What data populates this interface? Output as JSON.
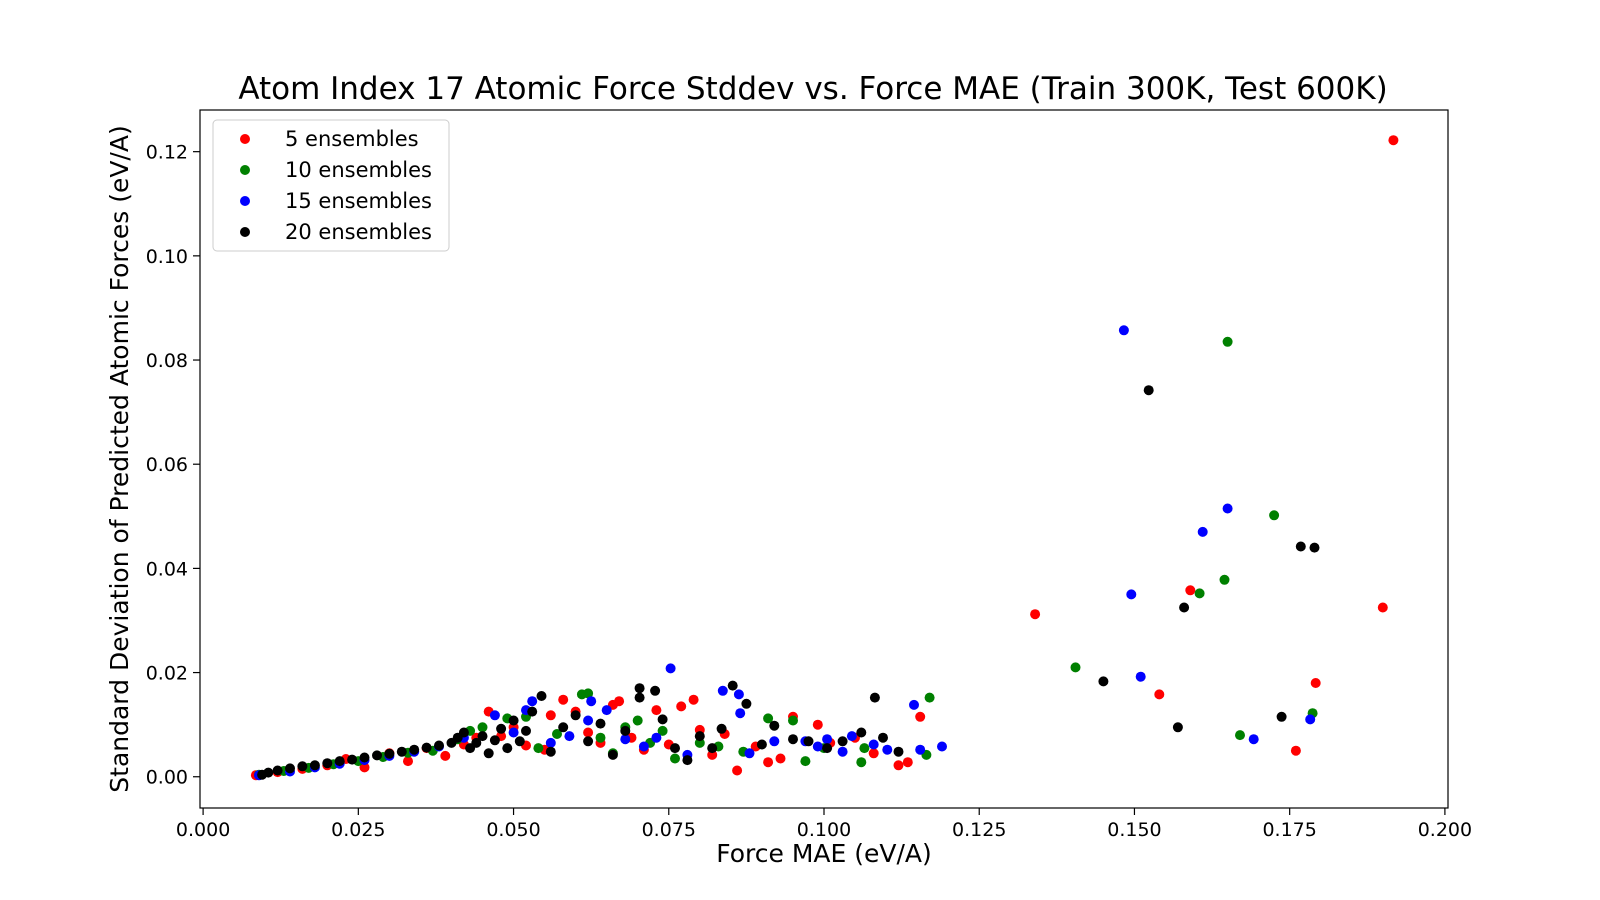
{
  "chart_data": {
    "type": "scatter",
    "title": "Atom Index 17 Atomic Force Stddev vs. Force MAE (Train 300K, Test 600K)",
    "xlabel": "Force MAE (eV/A)",
    "ylabel": "Standard Deviation of Predicted Atomic Forces (eV/A)",
    "xlim": [
      -0.0005,
      0.2005
    ],
    "ylim": [
      -0.006,
      0.128
    ],
    "xticks": [
      "0.000",
      "0.025",
      "0.050",
      "0.075",
      "0.100",
      "0.125",
      "0.150",
      "0.175",
      "0.200"
    ],
    "yticks": [
      "0.00",
      "0.02",
      "0.04",
      "0.06",
      "0.08",
      "0.10",
      "0.12"
    ],
    "grid": false,
    "legend_position": "top-left",
    "series": [
      {
        "name": "5 ensembles",
        "color": "#ff0000",
        "points": [
          [
            0.0085,
            0.0003
          ],
          [
            0.012,
            0.0009
          ],
          [
            0.016,
            0.0015
          ],
          [
            0.02,
            0.0022
          ],
          [
            0.023,
            0.0034
          ],
          [
            0.026,
            0.0018
          ],
          [
            0.03,
            0.0045
          ],
          [
            0.033,
            0.003
          ],
          [
            0.036,
            0.0055
          ],
          [
            0.039,
            0.004
          ],
          [
            0.042,
            0.0062
          ],
          [
            0.044,
            0.0075
          ],
          [
            0.046,
            0.0125
          ],
          [
            0.048,
            0.0078
          ],
          [
            0.05,
            0.0095
          ],
          [
            0.052,
            0.006
          ],
          [
            0.055,
            0.0052
          ],
          [
            0.056,
            0.0118
          ],
          [
            0.058,
            0.0148
          ],
          [
            0.06,
            0.0125
          ],
          [
            0.062,
            0.0085
          ],
          [
            0.064,
            0.0065
          ],
          [
            0.066,
            0.0138
          ],
          [
            0.067,
            0.0145
          ],
          [
            0.069,
            0.0075
          ],
          [
            0.071,
            0.0052
          ],
          [
            0.073,
            0.0128
          ],
          [
            0.075,
            0.0062
          ],
          [
            0.077,
            0.0135
          ],
          [
            0.079,
            0.0148
          ],
          [
            0.08,
            0.009
          ],
          [
            0.082,
            0.0042
          ],
          [
            0.084,
            0.0082
          ],
          [
            0.086,
            0.0012
          ],
          [
            0.089,
            0.0058
          ],
          [
            0.091,
            0.0028
          ],
          [
            0.093,
            0.0035
          ],
          [
            0.095,
            0.0115
          ],
          [
            0.099,
            0.01
          ],
          [
            0.101,
            0.0065
          ],
          [
            0.105,
            0.0075
          ],
          [
            0.108,
            0.0045
          ],
          [
            0.112,
            0.0022
          ],
          [
            0.1135,
            0.0028
          ],
          [
            0.1155,
            0.0115
          ],
          [
            0.134,
            0.0312
          ],
          [
            0.154,
            0.0158
          ],
          [
            0.159,
            0.0358
          ],
          [
            0.176,
            0.005
          ],
          [
            0.1792,
            0.018
          ],
          [
            0.19,
            0.0325
          ],
          [
            0.1917,
            0.1222
          ]
        ]
      },
      {
        "name": "10 ensembles",
        "color": "#008000",
        "points": [
          [
            0.009,
            0.0004
          ],
          [
            0.013,
            0.0011
          ],
          [
            0.017,
            0.0017
          ],
          [
            0.021,
            0.0024
          ],
          [
            0.025,
            0.003
          ],
          [
            0.029,
            0.0038
          ],
          [
            0.033,
            0.0046
          ],
          [
            0.037,
            0.005
          ],
          [
            0.041,
            0.0072
          ],
          [
            0.043,
            0.0088
          ],
          [
            0.045,
            0.0095
          ],
          [
            0.049,
            0.0112
          ],
          [
            0.052,
            0.0115
          ],
          [
            0.054,
            0.0055
          ],
          [
            0.057,
            0.0082
          ],
          [
            0.061,
            0.0158
          ],
          [
            0.062,
            0.016
          ],
          [
            0.064,
            0.0075
          ],
          [
            0.066,
            0.0045
          ],
          [
            0.068,
            0.0095
          ],
          [
            0.07,
            0.0108
          ],
          [
            0.072,
            0.0065
          ],
          [
            0.074,
            0.0088
          ],
          [
            0.076,
            0.0035
          ],
          [
            0.08,
            0.0065
          ],
          [
            0.083,
            0.0058
          ],
          [
            0.087,
            0.0048
          ],
          [
            0.091,
            0.0112
          ],
          [
            0.095,
            0.0108
          ],
          [
            0.097,
            0.003
          ],
          [
            0.1,
            0.0055
          ],
          [
            0.106,
            0.0028
          ],
          [
            0.1065,
            0.0055
          ],
          [
            0.1165,
            0.0042
          ],
          [
            0.117,
            0.0152
          ],
          [
            0.1405,
            0.021
          ],
          [
            0.1605,
            0.0352
          ],
          [
            0.1645,
            0.0378
          ],
          [
            0.165,
            0.0835
          ],
          [
            0.167,
            0.008
          ],
          [
            0.1725,
            0.0502
          ],
          [
            0.1787,
            0.0122
          ]
        ]
      },
      {
        "name": "15 ensembles",
        "color": "#0000ff",
        "points": [
          [
            0.009,
            0.0003
          ],
          [
            0.014,
            0.001
          ],
          [
            0.018,
            0.0018
          ],
          [
            0.022,
            0.0025
          ],
          [
            0.026,
            0.0032
          ],
          [
            0.03,
            0.004
          ],
          [
            0.034,
            0.0048
          ],
          [
            0.038,
            0.0058
          ],
          [
            0.042,
            0.0075
          ],
          [
            0.047,
            0.0118
          ],
          [
            0.05,
            0.0085
          ],
          [
            0.052,
            0.0128
          ],
          [
            0.053,
            0.0145
          ],
          [
            0.056,
            0.0065
          ],
          [
            0.059,
            0.0078
          ],
          [
            0.062,
            0.0108
          ],
          [
            0.0625,
            0.0145
          ],
          [
            0.065,
            0.0128
          ],
          [
            0.068,
            0.0072
          ],
          [
            0.071,
            0.0058
          ],
          [
            0.073,
            0.0075
          ],
          [
            0.0753,
            0.0208
          ],
          [
            0.078,
            0.0042
          ],
          [
            0.0837,
            0.0165
          ],
          [
            0.0863,
            0.0158
          ],
          [
            0.0865,
            0.0122
          ],
          [
            0.088,
            0.0045
          ],
          [
            0.092,
            0.0068
          ],
          [
            0.097,
            0.0068
          ],
          [
            0.099,
            0.0058
          ],
          [
            0.1005,
            0.0072
          ],
          [
            0.103,
            0.0048
          ],
          [
            0.1045,
            0.0078
          ],
          [
            0.108,
            0.0062
          ],
          [
            0.1102,
            0.0052
          ],
          [
            0.1145,
            0.0138
          ],
          [
            0.1155,
            0.0052
          ],
          [
            0.119,
            0.0058
          ],
          [
            0.1483,
            0.0857
          ],
          [
            0.1495,
            0.035
          ],
          [
            0.151,
            0.0192
          ],
          [
            0.161,
            0.047
          ],
          [
            0.165,
            0.0515
          ],
          [
            0.1692,
            0.0072
          ],
          [
            0.1783,
            0.011
          ]
        ]
      },
      {
        "name": "20 ensembles",
        "color": "#000000",
        "points": [
          [
            0.0095,
            0.0004
          ],
          [
            0.0105,
            0.0008
          ],
          [
            0.012,
            0.0012
          ],
          [
            0.014,
            0.0016
          ],
          [
            0.016,
            0.002
          ],
          [
            0.018,
            0.0022
          ],
          [
            0.02,
            0.0026
          ],
          [
            0.022,
            0.003
          ],
          [
            0.024,
            0.0033
          ],
          [
            0.026,
            0.0037
          ],
          [
            0.028,
            0.0041
          ],
          [
            0.03,
            0.0044
          ],
          [
            0.032,
            0.0048
          ],
          [
            0.034,
            0.0052
          ],
          [
            0.036,
            0.0056
          ],
          [
            0.038,
            0.006
          ],
          [
            0.04,
            0.0065
          ],
          [
            0.041,
            0.0075
          ],
          [
            0.042,
            0.0085
          ],
          [
            0.043,
            0.0055
          ],
          [
            0.044,
            0.0065
          ],
          [
            0.045,
            0.0078
          ],
          [
            0.046,
            0.0045
          ],
          [
            0.047,
            0.007
          ],
          [
            0.048,
            0.0092
          ],
          [
            0.049,
            0.0055
          ],
          [
            0.05,
            0.0108
          ],
          [
            0.051,
            0.0068
          ],
          [
            0.052,
            0.0088
          ],
          [
            0.053,
            0.0125
          ],
          [
            0.0545,
            0.0155
          ],
          [
            0.056,
            0.0048
          ],
          [
            0.058,
            0.0095
          ],
          [
            0.06,
            0.0118
          ],
          [
            0.062,
            0.0068
          ],
          [
            0.064,
            0.0102
          ],
          [
            0.066,
            0.0042
          ],
          [
            0.068,
            0.0088
          ],
          [
            0.0703,
            0.017
          ],
          [
            0.0703,
            0.0152
          ],
          [
            0.0728,
            0.0165
          ],
          [
            0.074,
            0.011
          ],
          [
            0.076,
            0.0055
          ],
          [
            0.078,
            0.0032
          ],
          [
            0.08,
            0.0078
          ],
          [
            0.082,
            0.0055
          ],
          [
            0.0835,
            0.0092
          ],
          [
            0.0853,
            0.0175
          ],
          [
            0.0875,
            0.014
          ],
          [
            0.09,
            0.0062
          ],
          [
            0.092,
            0.0098
          ],
          [
            0.095,
            0.0072
          ],
          [
            0.0975,
            0.0068
          ],
          [
            0.1005,
            0.0055
          ],
          [
            0.103,
            0.0068
          ],
          [
            0.106,
            0.0085
          ],
          [
            0.1082,
            0.0152
          ],
          [
            0.1095,
            0.0075
          ],
          [
            0.112,
            0.0048
          ],
          [
            0.145,
            0.0183
          ],
          [
            0.1523,
            0.0742
          ],
          [
            0.157,
            0.0095
          ],
          [
            0.158,
            0.0325
          ],
          [
            0.1737,
            0.0115
          ],
          [
            0.1768,
            0.0442
          ],
          [
            0.179,
            0.044
          ]
        ]
      }
    ]
  }
}
